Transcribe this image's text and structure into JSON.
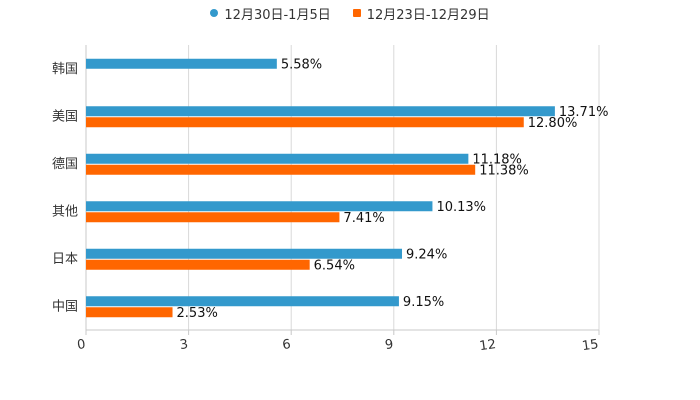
{
  "chart_data": {
    "type": "bar",
    "orientation": "horizontal",
    "categories": [
      "韩国",
      "美国",
      "德国",
      "其他",
      "日本",
      "中国"
    ],
    "series": [
      {
        "name": "12月30日-1月5日",
        "color": "#3399CC",
        "marker": "circle",
        "values": [
          5.58,
          13.71,
          11.18,
          10.13,
          9.24,
          9.15
        ],
        "labels": [
          "5.58%",
          "13.71%",
          "11.18%",
          "10.13%",
          "9.24%",
          "9.15%"
        ]
      },
      {
        "name": "12月23日-12月29日",
        "color": "#FF6600",
        "marker": "square",
        "values": [
          null,
          12.8,
          11.38,
          7.41,
          6.54,
          2.53
        ],
        "labels": [
          null,
          "12.80%",
          "11.38%",
          "7.41%",
          "6.54%",
          "2.53%"
        ]
      }
    ],
    "xlim": [
      0,
      15
    ],
    "xticks": [
      0,
      3,
      6,
      9,
      12,
      15
    ],
    "tick_labels": [
      "0",
      "3",
      "6",
      "9",
      "12",
      "15"
    ],
    "grid": "vertical",
    "legend_position": "top-center",
    "title": "",
    "xlabel": "",
    "ylabel": ""
  }
}
